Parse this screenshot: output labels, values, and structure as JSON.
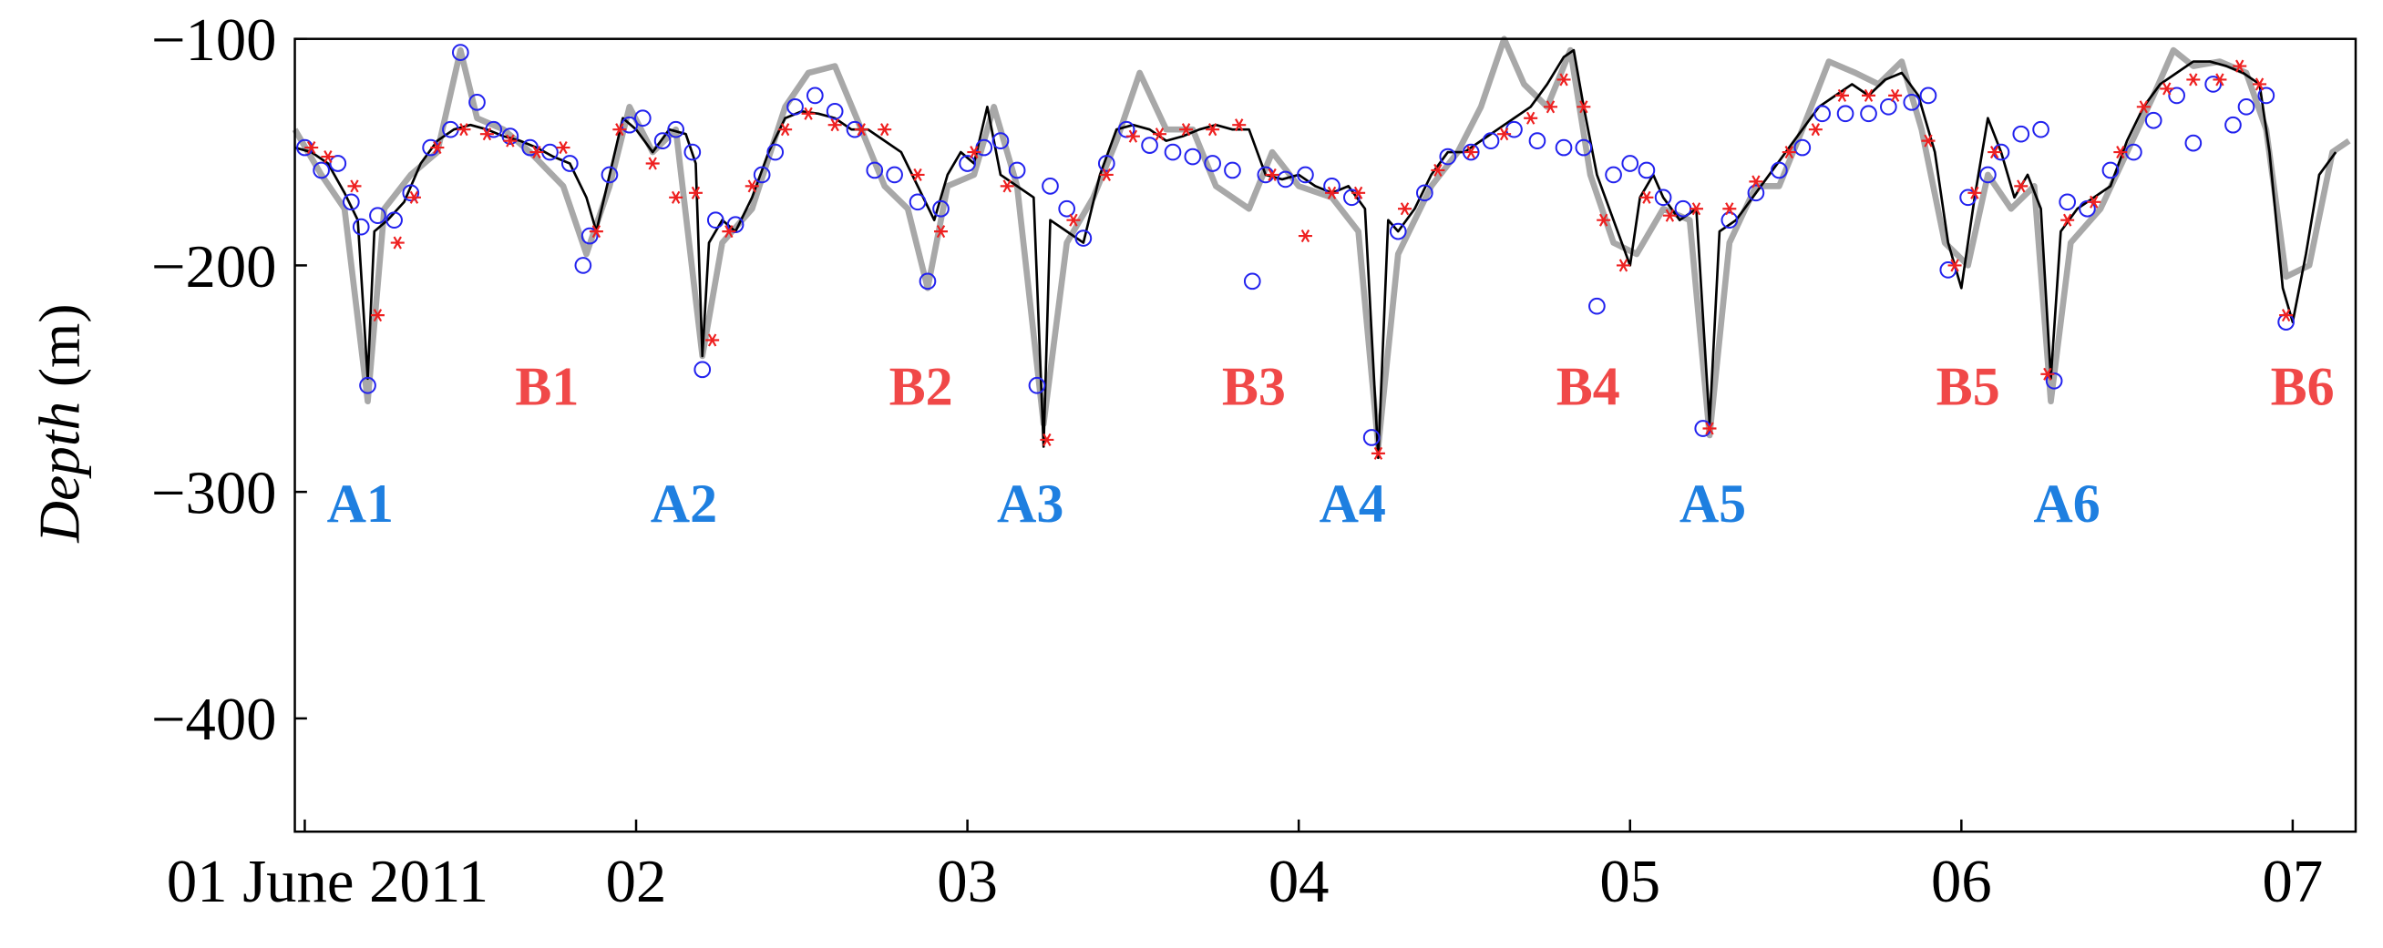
{
  "chart_data": {
    "type": "line",
    "ylabel_italic": "Depth",
    "ylabel_unit": "(m)",
    "xlim": [
      0.97,
      7.19
    ],
    "ylim": [
      -450,
      -100
    ],
    "xticks": [
      {
        "value": 1,
        "label": "01 June 2011"
      },
      {
        "value": 2,
        "label": "02"
      },
      {
        "value": 3,
        "label": "03"
      },
      {
        "value": 4,
        "label": "04"
      },
      {
        "value": 5,
        "label": "05"
      },
      {
        "value": 6,
        "label": "06"
      },
      {
        "value": 7,
        "label": "07"
      }
    ],
    "yticks": [
      {
        "value": -100,
        "label": "−100"
      },
      {
        "value": -200,
        "label": "−200"
      },
      {
        "value": -300,
        "label": "−300"
      },
      {
        "value": -400,
        "label": "−400"
      }
    ],
    "annotations": [
      {
        "text": "A1",
        "color": "#1e7fe0"
      },
      {
        "text": "A2",
        "color": "#1e7fe0"
      },
      {
        "text": "A3",
        "color": "#1e7fe0"
      },
      {
        "text": "A4",
        "color": "#1e7fe0"
      },
      {
        "text": "A5",
        "color": "#1e7fe0"
      },
      {
        "text": "A6",
        "color": "#1e7fe0"
      },
      {
        "text": "B1",
        "color": "#f04848"
      },
      {
        "text": "B2",
        "color": "#f04848"
      },
      {
        "text": "B3",
        "color": "#f04848"
      },
      {
        "text": "B4",
        "color": "#f04848"
      },
      {
        "text": "B5",
        "color": "#f04848"
      },
      {
        "text": "B6",
        "color": "#f04848"
      }
    ],
    "series": [
      {
        "style": "line",
        "color": "#a8a8a8",
        "width": 4,
        "x": [
          0.97,
          1.05,
          1.12,
          1.19,
          1.24,
          1.32,
          1.4,
          1.47,
          1.52,
          1.6,
          1.68,
          1.78,
          1.85,
          1.92,
          1.98,
          2.05,
          2.12,
          2.2,
          2.26,
          2.35,
          2.45,
          2.52,
          2.6,
          2.68,
          2.75,
          2.82,
          2.88,
          2.94,
          3.02,
          3.08,
          3.15,
          3.23,
          3.3,
          3.38,
          3.45,
          3.52,
          3.6,
          3.68,
          3.75,
          3.85,
          3.92,
          4.0,
          4.1,
          4.18,
          4.24,
          4.3,
          4.4,
          4.48,
          4.55,
          4.62,
          4.68,
          4.75,
          4.82,
          4.88,
          4.95,
          5.02,
          5.1,
          5.18,
          5.24,
          5.3,
          5.38,
          5.45,
          5.52,
          5.6,
          5.68,
          5.75,
          5.82,
          5.88,
          5.95,
          6.02,
          6.08,
          6.15,
          6.22,
          6.27,
          6.33,
          6.42,
          6.5,
          6.58,
          6.64,
          6.7,
          6.78,
          6.86,
          6.92,
          6.98,
          7.05,
          7.12,
          7.17
        ],
        "values": [
          -140,
          -160,
          -175,
          -260,
          -175,
          -160,
          -150,
          -105,
          -135,
          -140,
          -150,
          -165,
          -195,
          -165,
          -130,
          -150,
          -140,
          -240,
          -190,
          -175,
          -130,
          -115,
          -112,
          -140,
          -165,
          -175,
          -210,
          -165,
          -160,
          -130,
          -165,
          -270,
          -190,
          -170,
          -145,
          -115,
          -140,
          -140,
          -165,
          -175,
          -150,
          -165,
          -170,
          -185,
          -280,
          -195,
          -165,
          -150,
          -130,
          -100,
          -120,
          -130,
          -105,
          -160,
          -190,
          -195,
          -175,
          -180,
          -275,
          -190,
          -165,
          -165,
          -140,
          -110,
          -115,
          -120,
          -110,
          -140,
          -190,
          -200,
          -160,
          -175,
          -165,
          -260,
          -190,
          -175,
          -150,
          -125,
          -105,
          -112,
          -110,
          -115,
          -140,
          -205,
          -200,
          -150,
          -145
        ]
      },
      {
        "style": "line",
        "color": "#000000",
        "width": 1.6,
        "x": [
          0.97,
          1.02,
          1.07,
          1.12,
          1.16,
          1.19,
          1.21,
          1.25,
          1.3,
          1.35,
          1.4,
          1.45,
          1.5,
          1.55,
          1.6,
          1.65,
          1.7,
          1.75,
          1.8,
          1.85,
          1.88,
          1.92,
          1.96,
          2.0,
          2.05,
          2.1,
          2.15,
          2.18,
          2.2,
          2.22,
          2.26,
          2.3,
          2.35,
          2.4,
          2.45,
          2.5,
          2.55,
          2.6,
          2.65,
          2.7,
          2.75,
          2.8,
          2.85,
          2.9,
          2.94,
          2.98,
          3.02,
          3.06,
          3.1,
          3.15,
          3.2,
          3.23,
          3.25,
          3.3,
          3.35,
          3.4,
          3.45,
          3.5,
          3.55,
          3.6,
          3.65,
          3.7,
          3.75,
          3.8,
          3.85,
          3.9,
          3.95,
          4.0,
          4.05,
          4.1,
          4.15,
          4.2,
          4.24,
          4.27,
          4.3,
          4.35,
          4.4,
          4.45,
          4.5,
          4.55,
          4.6,
          4.65,
          4.7,
          4.75,
          4.8,
          4.83,
          4.86,
          4.9,
          4.95,
          5.0,
          5.03,
          5.07,
          5.1,
          5.15,
          5.2,
          5.24,
          5.27,
          5.32,
          5.37,
          5.42,
          5.47,
          5.52,
          5.57,
          5.62,
          5.67,
          5.72,
          5.77,
          5.82,
          5.87,
          5.92,
          5.96,
          6.0,
          6.04,
          6.08,
          6.12,
          6.16,
          6.2,
          6.24,
          6.27,
          6.3,
          6.35,
          6.4,
          6.45,
          6.5,
          6.55,
          6.6,
          6.65,
          6.7,
          6.75,
          6.8,
          6.85,
          6.9,
          6.93,
          6.97,
          7.0,
          7.04,
          7.08,
          7.13
        ],
        "values": [
          -148,
          -150,
          -155,
          -168,
          -180,
          -250,
          -185,
          -180,
          -172,
          -155,
          -145,
          -140,
          -138,
          -140,
          -143,
          -145,
          -148,
          -152,
          -155,
          -170,
          -185,
          -160,
          -135,
          -140,
          -150,
          -140,
          -142,
          -155,
          -240,
          -190,
          -180,
          -185,
          -170,
          -150,
          -135,
          -132,
          -133,
          -135,
          -140,
          -140,
          -145,
          -150,
          -165,
          -180,
          -160,
          -150,
          -155,
          -130,
          -160,
          -165,
          -170,
          -280,
          -180,
          -185,
          -190,
          -160,
          -140,
          -138,
          -140,
          -145,
          -143,
          -140,
          -138,
          -140,
          -140,
          -160,
          -162,
          -160,
          -165,
          -168,
          -165,
          -175,
          -285,
          -180,
          -185,
          -175,
          -160,
          -150,
          -150,
          -145,
          -140,
          -135,
          -130,
          -120,
          -108,
          -105,
          -130,
          -160,
          -180,
          -200,
          -170,
          -160,
          -170,
          -180,
          -175,
          -270,
          -185,
          -180,
          -170,
          -160,
          -150,
          -140,
          -130,
          -125,
          -120,
          -125,
          -118,
          -115,
          -125,
          -150,
          -190,
          -210,
          -170,
          -135,
          -150,
          -170,
          -160,
          -175,
          -250,
          -185,
          -175,
          -170,
          -165,
          -145,
          -130,
          -120,
          -115,
          -110,
          -110,
          -112,
          -115,
          -120,
          -150,
          -210,
          -225,
          -195,
          -160,
          -150
        ]
      },
      {
        "style": "circle",
        "color": "#2222ee",
        "x": [
          1.0,
          1.05,
          1.1,
          1.14,
          1.17,
          1.19,
          1.22,
          1.27,
          1.32,
          1.38,
          1.44,
          1.47,
          1.52,
          1.57,
          1.62,
          1.68,
          1.74,
          1.8,
          1.84,
          1.86,
          1.92,
          1.98,
          2.02,
          2.08,
          2.12,
          2.17,
          2.2,
          2.24,
          2.3,
          2.38,
          2.42,
          2.48,
          2.54,
          2.6,
          2.66,
          2.72,
          2.78,
          2.85,
          2.88,
          2.92,
          3.0,
          3.05,
          3.1,
          3.15,
          3.21,
          3.25,
          3.3,
          3.35,
          3.42,
          3.48,
          3.55,
          3.62,
          3.68,
          3.74,
          3.8,
          3.86,
          3.9,
          3.96,
          4.02,
          4.1,
          4.16,
          4.22,
          4.3,
          4.38,
          4.45,
          4.52,
          4.58,
          4.65,
          4.72,
          4.8,
          4.86,
          4.9,
          4.95,
          5.0,
          5.05,
          5.1,
          5.16,
          5.22,
          5.3,
          5.38,
          5.45,
          5.52,
          5.58,
          5.65,
          5.72,
          5.78,
          5.85,
          5.9,
          5.96,
          6.02,
          6.08,
          6.12,
          6.18,
          6.24,
          6.28,
          6.32,
          6.38,
          6.45,
          6.52,
          6.58,
          6.65,
          6.7,
          6.76,
          6.82,
          6.86,
          6.92,
          6.98
        ],
        "values": [
          -148,
          -158,
          -155,
          -172,
          -183,
          -253,
          -178,
          -180,
          -168,
          -148,
          -140,
          -106,
          -128,
          -140,
          -143,
          -148,
          -150,
          -155,
          -200,
          -187,
          -160,
          -138,
          -135,
          -145,
          -140,
          -150,
          -246,
          -180,
          -182,
          -160,
          -150,
          -130,
          -125,
          -132,
          -140,
          -158,
          -160,
          -172,
          -207,
          -175,
          -155,
          -148,
          -145,
          -158,
          -253,
          -165,
          -175,
          -188,
          -155,
          -140,
          -147,
          -150,
          -152,
          -155,
          -158,
          -207,
          -160,
          -162,
          -160,
          -165,
          -170,
          -276,
          -185,
          -168,
          -152,
          -150,
          -145,
          -140,
          -145,
          -148,
          -148,
          -218,
          -160,
          -155,
          -158,
          -170,
          -175,
          -272,
          -180,
          -168,
          -158,
          -148,
          -133,
          -133,
          -133,
          -130,
          -128,
          -125,
          -202,
          -170,
          -160,
          -150,
          -142,
          -140,
          -251,
          -172,
          -175,
          -158,
          -150,
          -136,
          -125,
          -146,
          -120,
          -138,
          -130,
          -125,
          -225
        ]
      },
      {
        "style": "star",
        "color": "#ee2020",
        "x": [
          1.02,
          1.07,
          1.15,
          1.22,
          1.28,
          1.33,
          1.4,
          1.48,
          1.55,
          1.62,
          1.7,
          1.78,
          1.88,
          1.95,
          2.05,
          2.12,
          2.18,
          2.23,
          2.28,
          2.35,
          2.45,
          2.52,
          2.6,
          2.68,
          2.75,
          2.85,
          2.92,
          3.02,
          3.12,
          3.24,
          3.32,
          3.42,
          3.5,
          3.58,
          3.66,
          3.74,
          3.82,
          3.92,
          4.02,
          4.1,
          4.18,
          4.24,
          4.32,
          4.42,
          4.52,
          4.62,
          4.7,
          4.76,
          4.8,
          4.86,
          4.92,
          4.98,
          5.05,
          5.12,
          5.2,
          5.24,
          5.3,
          5.38,
          5.48,
          5.56,
          5.64,
          5.72,
          5.8,
          5.9,
          5.98,
          6.04,
          6.1,
          6.18,
          6.26,
          6.32,
          6.4,
          6.48,
          6.55,
          6.62,
          6.7,
          6.78,
          6.84,
          6.9,
          6.98
        ],
        "values": [
          -148,
          -152,
          -165,
          -222,
          -190,
          -170,
          -148,
          -140,
          -142,
          -145,
          -150,
          -148,
          -185,
          -140,
          -155,
          -170,
          -168,
          -233,
          -185,
          -165,
          -140,
          -133,
          -138,
          -140,
          -140,
          -160,
          -185,
          -150,
          -165,
          -277,
          -180,
          -160,
          -143,
          -142,
          -140,
          -140,
          -138,
          -160,
          -187,
          -168,
          -168,
          -283,
          -175,
          -158,
          -150,
          -142,
          -135,
          -130,
          -118,
          -130,
          -180,
          -200,
          -170,
          -178,
          -175,
          -272,
          -175,
          -163,
          -150,
          -140,
          -125,
          -125,
          -125,
          -145,
          -200,
          -168,
          -150,
          -165,
          -248,
          -180,
          -172,
          -150,
          -130,
          -122,
          -118,
          -118,
          -112,
          -120,
          -222
        ]
      }
    ]
  }
}
